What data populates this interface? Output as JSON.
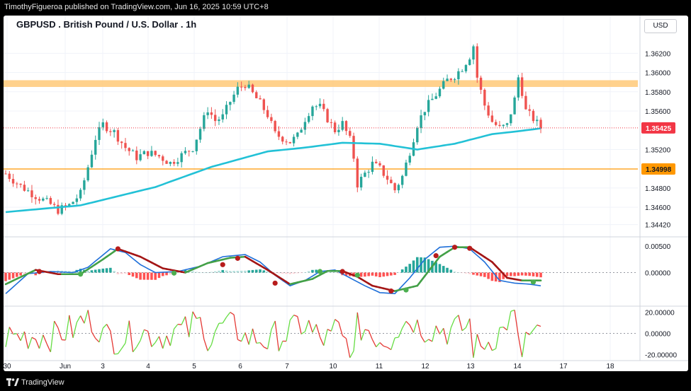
{
  "header": {
    "publish_text": "TimothyFigueroa published on TradingView.com, Jun 16, 2025 10:59 UTC+8",
    "chart_title": "GBPUSD . British Pound / U.S. Dollar . 1h",
    "currency": "USD"
  },
  "footer": {
    "brand": "TradingView"
  },
  "colors": {
    "up": "#26a69a",
    "down": "#ef5350",
    "ma": "#22c1d6",
    "resistance_zone": "#ffcc80",
    "support_line": "#ff9800",
    "price_badge": "#f23645",
    "support_badge": "#ff9800",
    "macd_fast": "#1e6fd9",
    "macd_slow_up": "#43a047",
    "macd_slow_down": "#a31515",
    "osc_up": "#66dd44",
    "osc_down": "#e53935"
  },
  "chart_data": [
    {
      "type": "candlestick",
      "title": "GBPUSD . British Pound / U.S. Dollar . 1h",
      "ylim": [
        1.343,
        1.3643
      ],
      "y_ticks": [
        "1.36200",
        "1.36000",
        "1.35800",
        "1.35600",
        "1.35200",
        "1.34800",
        "1.34600",
        "1.34420"
      ],
      "x_ticks": [
        "30",
        "Jun",
        "3",
        "4",
        "5",
        "6",
        "7",
        "10",
        "11",
        "12",
        "13",
        "14",
        "17",
        "18"
      ],
      "last_price": "1.35425",
      "support_level": "1.34998",
      "resistance_zone": [
        1.3585,
        1.3592
      ],
      "close_path": [
        [
          0,
          1.3495
        ],
        [
          4,
          1.3482
        ],
        [
          8,
          1.3472
        ],
        [
          12,
          1.3463
        ],
        [
          14,
          1.3457
        ],
        [
          17,
          1.3462
        ],
        [
          20,
          1.3474
        ],
        [
          22,
          1.3502
        ],
        [
          24,
          1.3532
        ],
        [
          26,
          1.3546
        ],
        [
          29,
          1.3538
        ],
        [
          32,
          1.3522
        ],
        [
          35,
          1.3512
        ],
        [
          38,
          1.3517
        ],
        [
          41,
          1.3513
        ],
        [
          44,
          1.3506
        ],
        [
          47,
          1.3514
        ],
        [
          50,
          1.3522
        ],
        [
          52,
          1.3542
        ],
        [
          54,
          1.3562
        ],
        [
          56,
          1.355
        ],
        [
          58,
          1.3554
        ],
        [
          60,
          1.357
        ],
        [
          62,
          1.3583
        ],
        [
          64,
          1.3588
        ],
        [
          66,
          1.3578
        ],
        [
          68,
          1.3568
        ],
        [
          70,
          1.3556
        ],
        [
          72,
          1.3536
        ],
        [
          74,
          1.3532
        ],
        [
          76,
          1.3528
        ],
        [
          78,
          1.3534
        ],
        [
          80,
          1.3552
        ],
        [
          82,
          1.3566
        ],
        [
          84,
          1.3564
        ],
        [
          86,
          1.3552
        ],
        [
          88,
          1.354
        ],
        [
          90,
          1.3547
        ],
        [
          92,
          1.353
        ],
        [
          93,
          1.3512
        ],
        [
          94,
          1.3484
        ],
        [
          96,
          1.3495
        ],
        [
          98,
          1.3505
        ],
        [
          100,
          1.35
        ],
        [
          102,
          1.349
        ],
        [
          104,
          1.3478
        ],
        [
          106,
          1.3492
        ],
        [
          108,
          1.3518
        ],
        [
          110,
          1.3546
        ],
        [
          112,
          1.3562
        ],
        [
          114,
          1.3572
        ],
        [
          116,
          1.3582
        ],
        [
          118,
          1.3592
        ],
        [
          120,
          1.3597
        ],
        [
          122,
          1.3605
        ],
        [
          124,
          1.3617
        ],
        [
          125,
          1.3628
        ],
        [
          126,
          1.3595
        ],
        [
          128,
          1.3566
        ],
        [
          130,
          1.3549
        ],
        [
          132,
          1.3542
        ],
        [
          134,
          1.3545
        ],
        [
          136,
          1.3572
        ],
        [
          137,
          1.3595
        ],
        [
          138,
          1.358
        ],
        [
          139,
          1.356
        ],
        [
          141,
          1.3552
        ],
        [
          143,
          1.35425
        ]
      ],
      "ma_path": [
        [
          0,
          1.3455
        ],
        [
          20,
          1.3462
        ],
        [
          40,
          1.3481
        ],
        [
          55,
          1.3502
        ],
        [
          70,
          1.3518
        ],
        [
          80,
          1.3522
        ],
        [
          90,
          1.3527
        ],
        [
          100,
          1.3526
        ],
        [
          110,
          1.352
        ],
        [
          120,
          1.3526
        ],
        [
          130,
          1.3536
        ],
        [
          137,
          1.3539
        ],
        [
          143,
          1.3542
        ]
      ]
    },
    {
      "type": "line",
      "indicator": "MACD",
      "ylim": [
        -0.0065,
        0.0065
      ],
      "y_ticks": [
        "0.00500",
        "0.00000"
      ],
      "fast": [
        [
          0,
          -0.004
        ],
        [
          6,
          -0.0002
        ],
        [
          12,
          0.0002
        ],
        [
          18,
          0.0
        ],
        [
          22,
          0.001
        ],
        [
          28,
          0.0045
        ],
        [
          32,
          0.0038
        ],
        [
          36,
          0.0015
        ],
        [
          40,
          0.0
        ],
        [
          46,
          0.0002
        ],
        [
          52,
          0.0012
        ],
        [
          58,
          0.003
        ],
        [
          64,
          0.0034
        ],
        [
          68,
          0.002
        ],
        [
          72,
          -0.0005
        ],
        [
          76,
          -0.0025
        ],
        [
          80,
          -0.0015
        ],
        [
          84,
          0.0002
        ],
        [
          88,
          0.0005
        ],
        [
          92,
          -0.001
        ],
        [
          96,
          -0.0025
        ],
        [
          100,
          -0.0038
        ],
        [
          104,
          -0.004
        ],
        [
          108,
          -0.001
        ],
        [
          112,
          0.0025
        ],
        [
          116,
          0.0048
        ],
        [
          120,
          0.005
        ],
        [
          124,
          0.0045
        ],
        [
          128,
          0.002
        ],
        [
          132,
          -0.0015
        ],
        [
          136,
          -0.002
        ],
        [
          140,
          -0.0022
        ],
        [
          143,
          -0.0025
        ]
      ],
      "slow": [
        [
          0,
          -0.0022
        ],
        [
          8,
          0.0005
        ],
        [
          14,
          -0.0003
        ],
        [
          20,
          -0.0003
        ],
        [
          26,
          0.0025
        ],
        [
          30,
          0.0045
        ],
        [
          36,
          0.003
        ],
        [
          42,
          0.0008
        ],
        [
          48,
          0.0
        ],
        [
          54,
          0.0018
        ],
        [
          60,
          0.0028
        ],
        [
          64,
          0.003
        ],
        [
          70,
          0.0005
        ],
        [
          76,
          -0.0022
        ],
        [
          82,
          -0.0012
        ],
        [
          86,
          0.0003
        ],
        [
          90,
          0.0003
        ],
        [
          94,
          -0.0008
        ],
        [
          98,
          -0.0025
        ],
        [
          104,
          -0.0035
        ],
        [
          110,
          -0.0025
        ],
        [
          116,
          0.003
        ],
        [
          120,
          0.0048
        ],
        [
          124,
          0.0048
        ],
        [
          130,
          0.002
        ],
        [
          134,
          -0.001
        ],
        [
          138,
          -0.0015
        ],
        [
          143,
          -0.0015
        ]
      ],
      "cross_points": [
        [
          9,
          0.0002,
          "down"
        ],
        [
          20,
          -0.0003,
          "up"
        ],
        [
          30,
          0.0045,
          "down"
        ],
        [
          45,
          -0.0001,
          "up"
        ],
        [
          58,
          0.0015,
          "down"
        ],
        [
          62,
          0.0027,
          "down"
        ],
        [
          72,
          -0.002,
          "down"
        ],
        [
          84,
          0.0002,
          "up"
        ],
        [
          90,
          0.0002,
          "down"
        ],
        [
          94,
          -0.0005,
          "up"
        ],
        [
          103,
          -0.0035,
          "down"
        ],
        [
          107,
          -0.0033,
          "up"
        ],
        [
          115,
          0.0032,
          "down"
        ],
        [
          120,
          0.0048,
          "down"
        ],
        [
          124,
          0.0046,
          "down"
        ],
        [
          141,
          -0.0018,
          "up"
        ]
      ]
    },
    {
      "type": "line",
      "indicator": "Oscillator",
      "ylim": [
        -25,
        25
      ],
      "y_ticks": [
        "20.00000",
        "0.00000",
        "-20.00000"
      ]
    }
  ]
}
